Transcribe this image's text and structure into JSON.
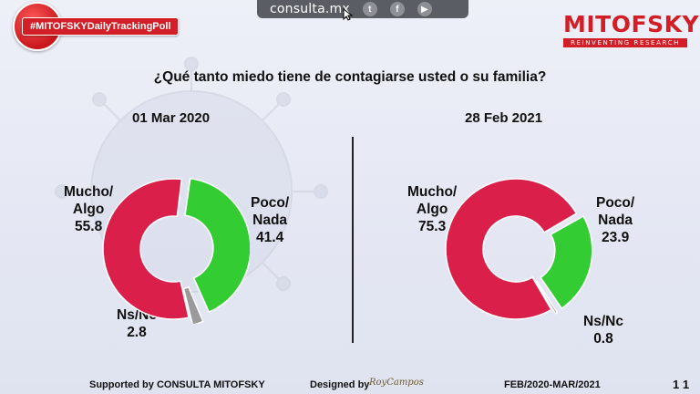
{
  "top_bar": {
    "url": "consulta.mx",
    "icons": [
      "twitter-icon",
      "facebook-icon",
      "youtube-icon"
    ]
  },
  "badge": {
    "label": "#MITOFSKYDailyTrackingPoll"
  },
  "logo": {
    "name": "MITOFSKY",
    "tagline": "REINVENTING RESEARCH"
  },
  "question": "¿Qué tanto miedo tiene de contagiarse usted o su familia?",
  "colors": {
    "mucho_algo": "#d91f4a",
    "poco_nada": "#33cc33",
    "ns_nc": "#9a9a9a",
    "brand": "#d21e26"
  },
  "chart_data": [
    {
      "type": "pie",
      "donut": true,
      "title": "01 Mar 2020",
      "slices": [
        {
          "label": "Mucho/ Algo",
          "label_lines": [
            "Mucho/",
            "Algo"
          ],
          "value": 55.8
        },
        {
          "label": "Poco/ Nada",
          "label_lines": [
            "Poco/",
            "Nada"
          ],
          "value": 41.4
        },
        {
          "label": "Ns/Nc",
          "label_lines": [
            "Ns/Nc"
          ],
          "value": 2.8
        }
      ]
    },
    {
      "type": "pie",
      "donut": true,
      "title": "28 Feb 2021",
      "slices": [
        {
          "label": "Mucho/ Algo",
          "label_lines": [
            "Mucho/",
            "Algo"
          ],
          "value": 75.3
        },
        {
          "label": "Poco/ Nada",
          "label_lines": [
            "Poco/",
            "Nada"
          ],
          "value": 23.9
        },
        {
          "label": "Ns/Nc",
          "label_lines": [
            "Ns/Nc"
          ],
          "value": 0.8
        }
      ]
    }
  ],
  "footer": {
    "supported": "Supported by  CONSULTA  MITOFSKY",
    "designed": "Designed by",
    "period": "FEB/2020-MAR/2021",
    "page": "1 1"
  }
}
